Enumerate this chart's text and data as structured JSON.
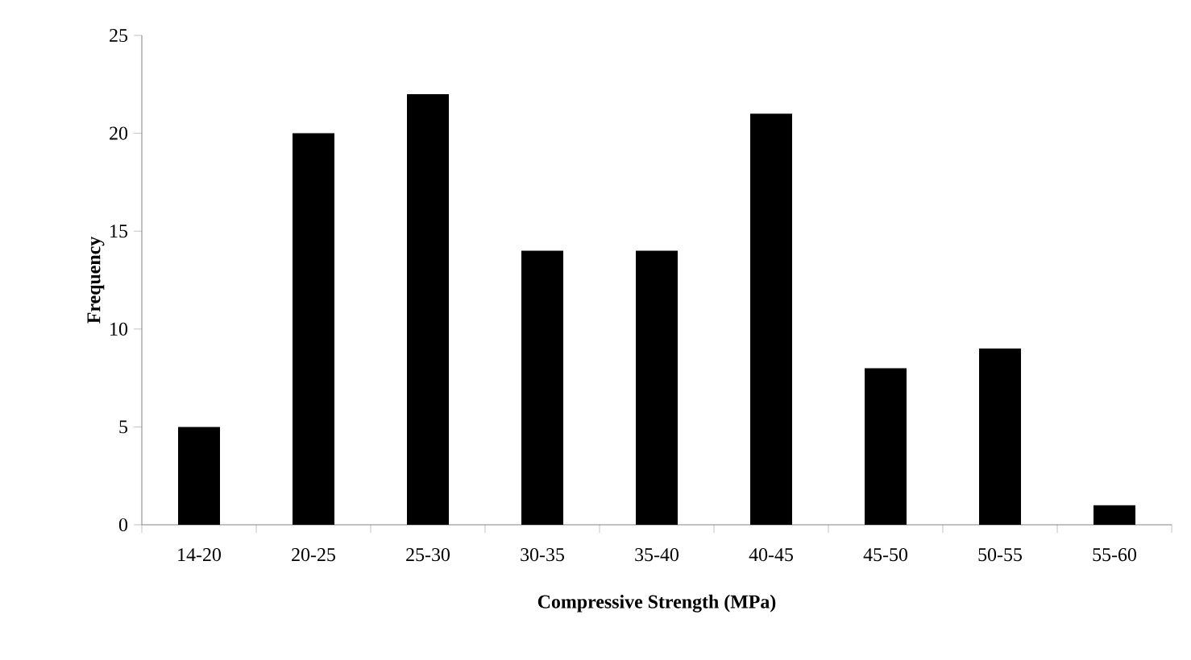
{
  "chart_data": {
    "type": "bar",
    "xlabel": "Compressive  Strength (MPa)",
    "ylabel": "Frequency",
    "categories": [
      "14-20",
      "20-25",
      "25-30",
      "30-35",
      "35-40",
      "40-45",
      "45-50",
      "50-55",
      "55-60"
    ],
    "values": [
      5,
      20,
      22,
      14,
      14,
      21,
      8,
      9,
      1
    ],
    "color": "#000000",
    "ylim": [
      0,
      25
    ],
    "yticks": [
      0,
      5,
      10,
      15,
      20,
      25
    ],
    "grid": false
  }
}
